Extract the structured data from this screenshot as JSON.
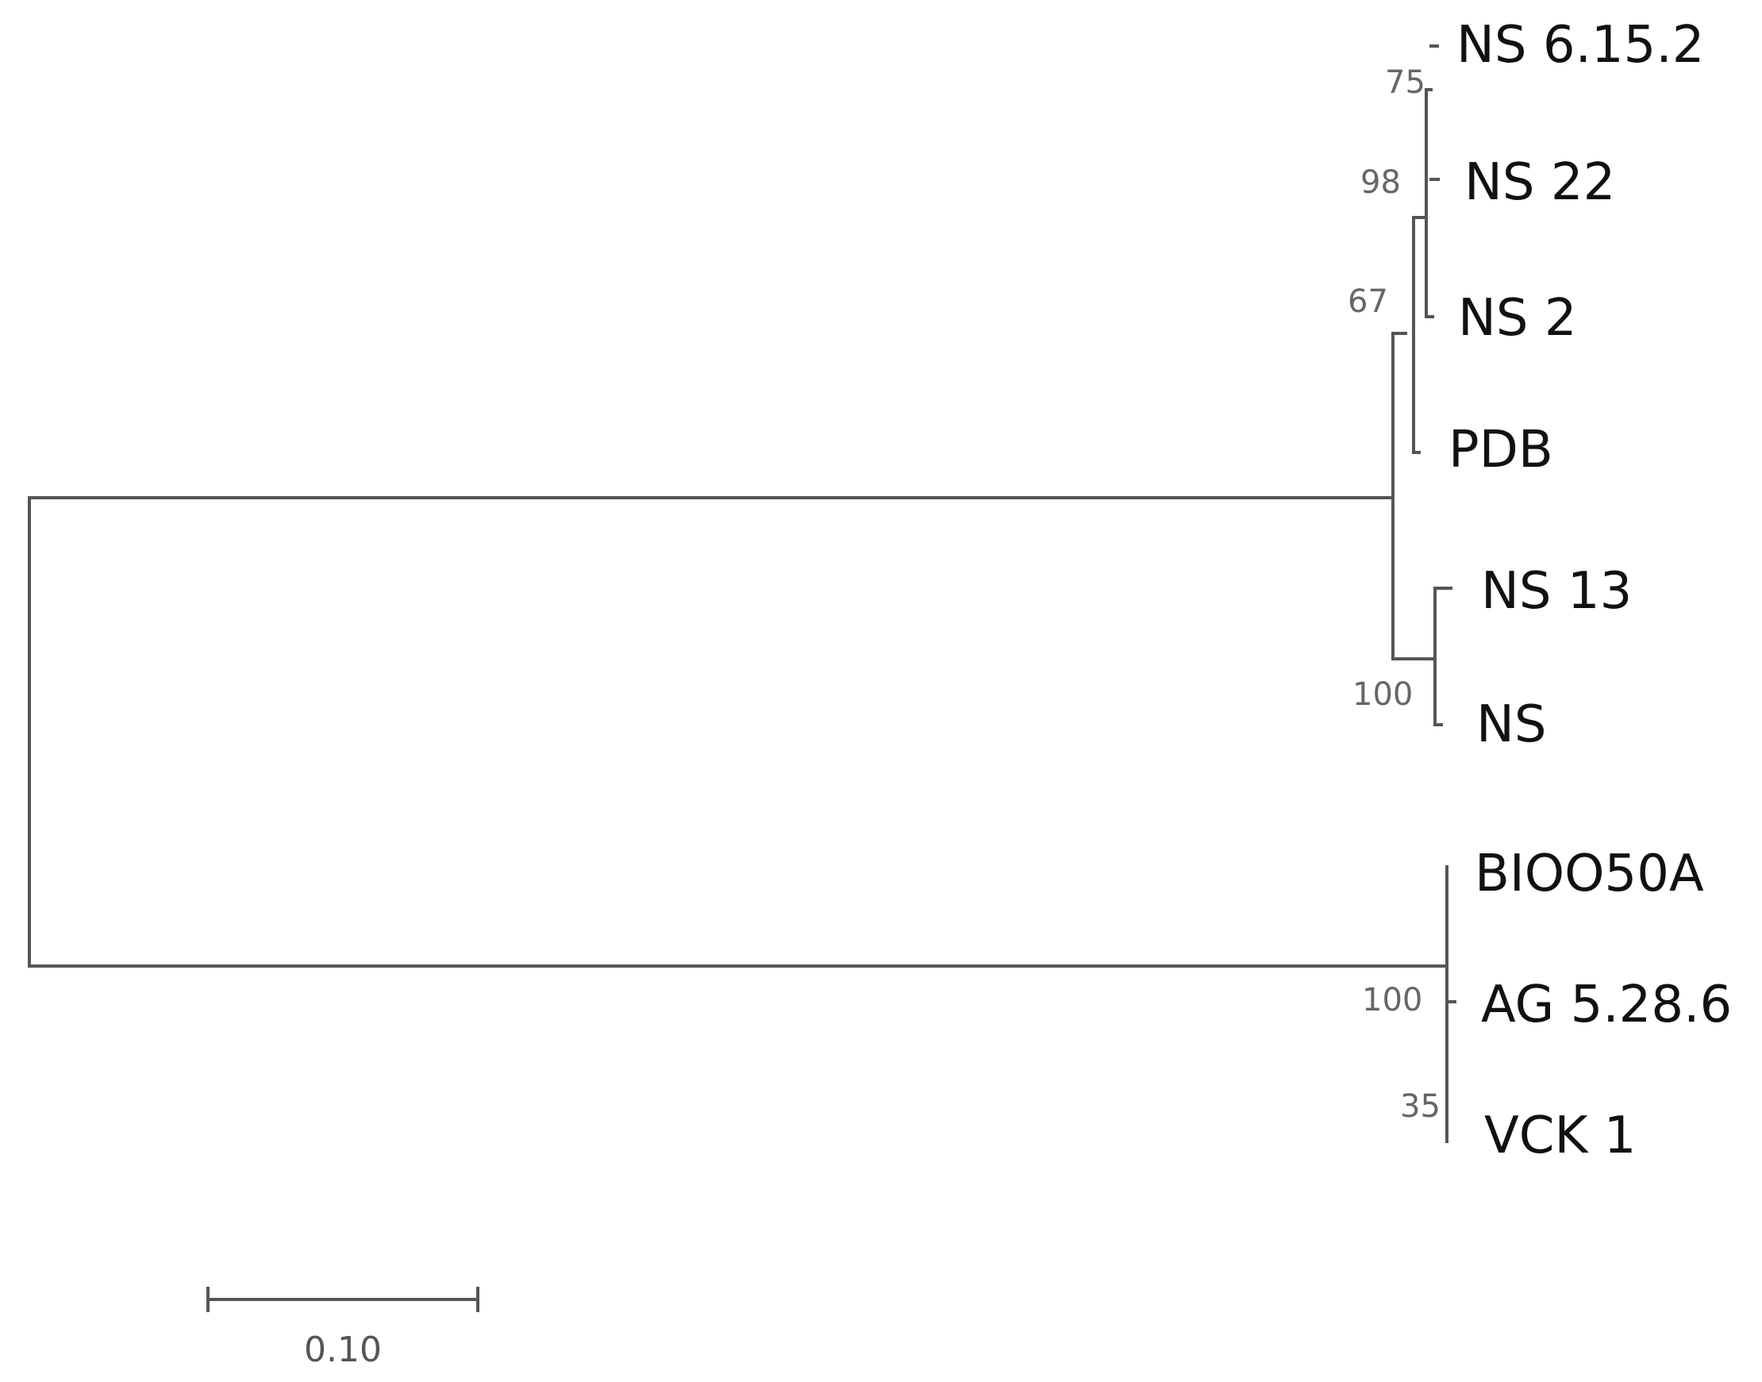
{
  "tree": {
    "taxa": [
      {
        "id": "t1",
        "label": "NS 6.15.2"
      },
      {
        "id": "t2",
        "label": "NS 22"
      },
      {
        "id": "t3",
        "label": "NS 2"
      },
      {
        "id": "t4",
        "label": "PDB"
      },
      {
        "id": "t5",
        "label": "NS 13"
      },
      {
        "id": "t6",
        "label": "NS"
      },
      {
        "id": "t7",
        "label": "BIOO50A"
      },
      {
        "id": "t8",
        "label": "AG 5.28.6"
      },
      {
        "id": "t9",
        "label": "VCK 1"
      }
    ],
    "bootstrap": {
      "n75": "75",
      "n98": "98",
      "n67": "67",
      "n100a": "100",
      "n100b": "100",
      "n35": "35"
    },
    "scale_bar": {
      "value": 0.1,
      "label": "0.10"
    }
  }
}
